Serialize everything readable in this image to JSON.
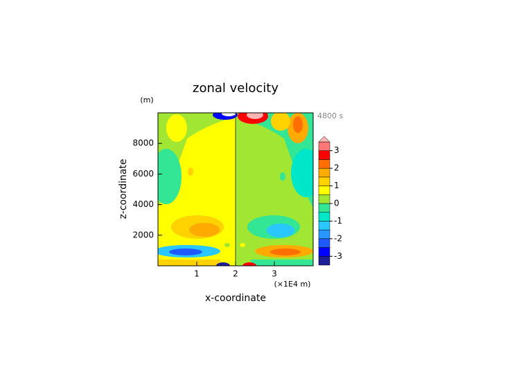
{
  "chart_data": {
    "type": "contour",
    "title": "zonal velocity",
    "x_label": "x-coordinate",
    "y_label": "z-coordinate",
    "y_unit": "(m)",
    "x_unit": "(×1E4 m)",
    "annotation": "4800 s",
    "xlim": [
      0,
      4
    ],
    "xticks": [
      1,
      2,
      3
    ],
    "ylim": [
      0,
      10000
    ],
    "yticks": [
      2000,
      4000,
      6000,
      8000
    ],
    "colorbar": {
      "levels": [
        -3.5,
        -3,
        -2.5,
        -2,
        -1.5,
        -1,
        -0.5,
        0,
        0.5,
        1,
        1.5,
        2,
        2.5,
        3,
        3.5
      ],
      "colors": [
        "#1e1e96",
        "#0000ff",
        "#1e5aff",
        "#2896ff",
        "#28c8ff",
        "#00e6c8",
        "#32e696",
        "#a0e632",
        "#ffff00",
        "#ffd200",
        "#ffaa00",
        "#ff6e00",
        "#ff0000",
        "#ff7878"
      ],
      "extend_color": "#ffb4b4",
      "ticks": [
        -3,
        -2,
        -1,
        0,
        1,
        2,
        3
      ]
    }
  }
}
